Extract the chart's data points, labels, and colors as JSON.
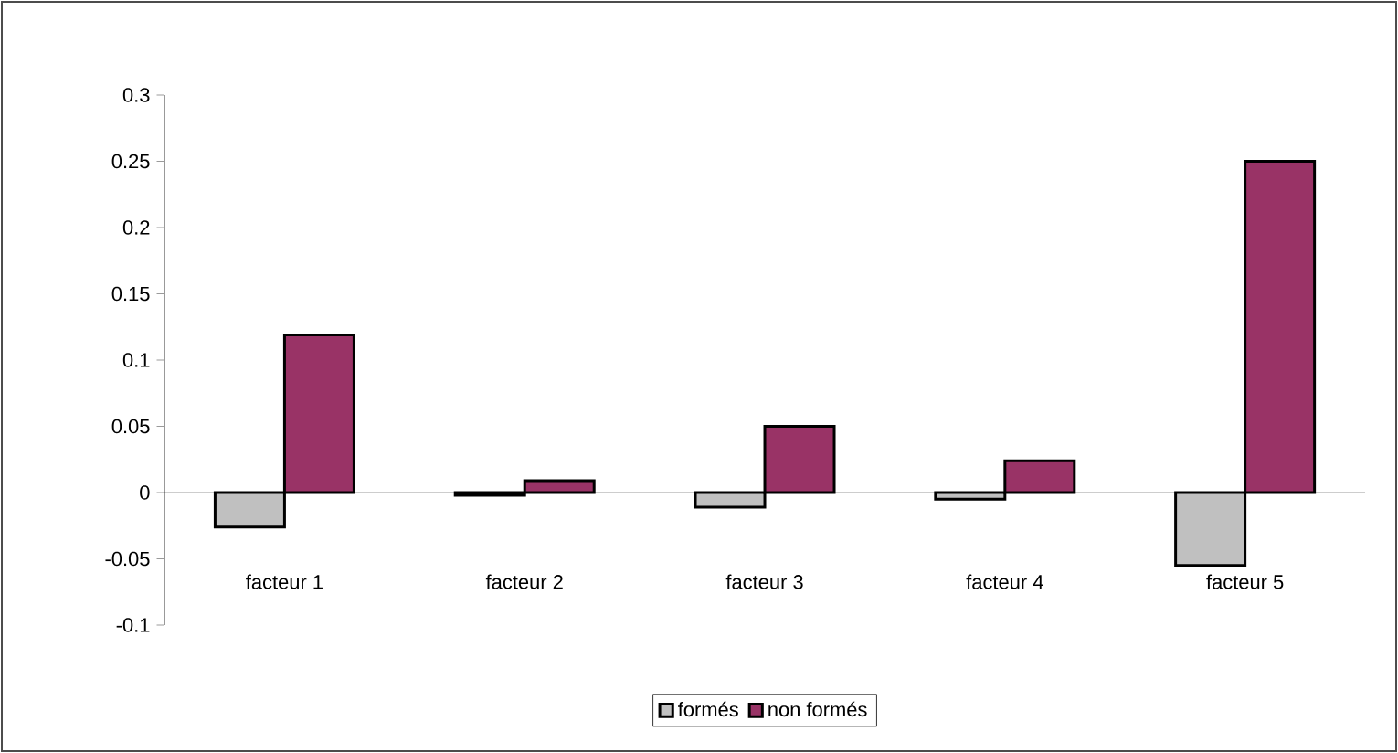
{
  "chart_data": {
    "type": "bar",
    "categories": [
      "facteur 1",
      "facteur 2",
      "facteur 3",
      "facteur 4",
      "facteur 5"
    ],
    "series": [
      {
        "name": "formés",
        "color": "#c0c0c0",
        "values": [
          -0.026,
          -0.002,
          -0.011,
          -0.005,
          -0.055
        ]
      },
      {
        "name": "non formés",
        "color": "#993366",
        "values": [
          0.119,
          0.009,
          0.05,
          0.024,
          0.25
        ]
      }
    ],
    "ylim": [
      -0.1,
      0.3
    ],
    "yticks": [
      -0.1,
      -0.05,
      0,
      0.05,
      0.1,
      0.15,
      0.2,
      0.25,
      0.3
    ],
    "legend": "bottom"
  }
}
